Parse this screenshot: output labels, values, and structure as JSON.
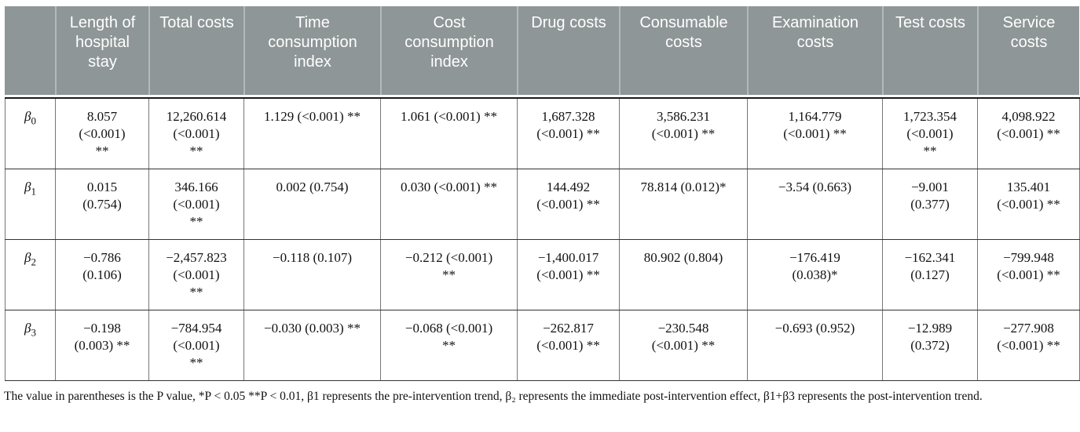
{
  "table": {
    "header": [
      "",
      "Length of hospital stay",
      "Total costs",
      "Time consumption index",
      "Cost consumption index",
      "Drug costs",
      "Consumable costs",
      "Examination costs",
      "Test costs",
      "Service costs"
    ],
    "rows": [
      {
        "label": {
          "symbol": "β",
          "sub": "0"
        },
        "cells": [
          "8.057\n(<0.001)\n**",
          "12,260.614\n(<0.001)\n**",
          "1.129 (<0.001) **",
          "1.061 (<0.001) **",
          "1,687.328\n(<0.001) **",
          "3,586.231\n(<0.001) **",
          "1,164.779\n(<0.001) **",
          "1,723.354\n(<0.001)\n**",
          "4,098.922\n(<0.001) **"
        ]
      },
      {
        "label": {
          "symbol": "β",
          "sub": "1"
        },
        "cells": [
          "0.015\n(0.754)",
          "346.166\n(<0.001)\n**",
          "0.002 (0.754)",
          "0.030 (<0.001) **",
          "144.492\n(<0.001) **",
          "78.814 (0.012)*",
          "−3.54 (0.663)",
          "−9.001\n(0.377)",
          "135.401\n(<0.001) **"
        ]
      },
      {
        "label": {
          "symbol": "β",
          "sub": "2"
        },
        "cells": [
          "−0.786\n(0.106)",
          "−2,457.823\n(<0.001)\n**",
          "−0.118 (0.107)",
          "−0.212 (<0.001)\n**",
          "−1,400.017\n(<0.001) **",
          "80.902 (0.804)",
          "−176.419\n(0.038)*",
          "−162.341\n(0.127)",
          "−799.948\n(<0.001) **"
        ]
      },
      {
        "label": {
          "symbol": "β",
          "sub": "3"
        },
        "cells": [
          "−0.198\n(0.003) **",
          "−784.954\n(<0.001)\n**",
          "−0.030 (0.003) **",
          "−0.068 (<0.001)\n**",
          "−262.817\n(<0.001) **",
          "−230.548\n(<0.001) **",
          "−0.693 (0.952)",
          "−12.989\n(0.372)",
          "−277.908\n(<0.001) **"
        ]
      }
    ]
  },
  "footnote": {
    "text": "The value in parentheses is the P value, *P < 0.05 **P < 0.01, β1 represents the pre-intervention trend, β₂ represents the immediate post-intervention effect, β1+β3 represents the post-intervention trend."
  },
  "colors": {
    "header_bg": "#8f9697",
    "header_text": "#ffffff",
    "header_separator": "#b4b9b9",
    "grid_vertical": "#777777",
    "grid_horizontal": "#333333",
    "body_text": "#111111"
  }
}
